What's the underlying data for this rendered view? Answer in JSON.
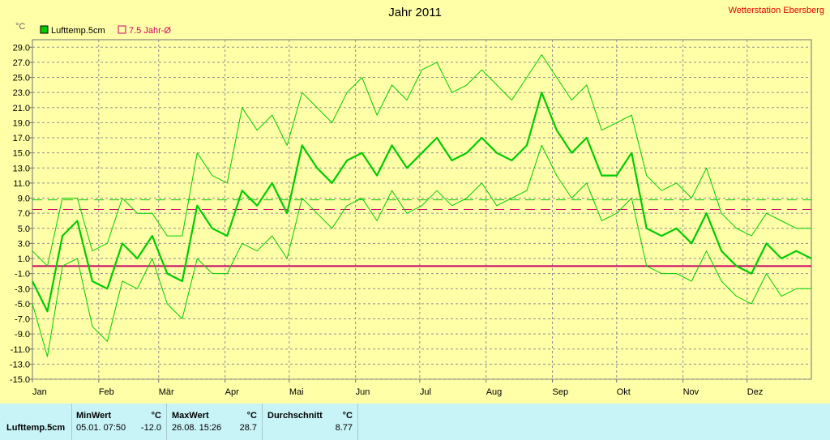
{
  "chart_data": {
    "type": "line",
    "title": "Jahr 2011",
    "station": "Wetterstation Ebersberg",
    "unit": "°C",
    "ylim": [
      -15,
      30
    ],
    "yticks": [
      29.0,
      27.0,
      25.0,
      23.0,
      21.0,
      19.0,
      17.0,
      15.0,
      13.0,
      11.0,
      9.0,
      7.0,
      5.0,
      3.0,
      1.0,
      -1.0,
      -3.0,
      -5.0,
      -7.0,
      -9.0,
      -11.0,
      -13.0,
      -15.0
    ],
    "ytick_labels": [
      "29.0",
      "27.0",
      "25.0",
      "23.0",
      "21.0",
      "19.0",
      "17.0",
      "15.0",
      "13.0",
      "11.0",
      "9.0",
      "7.0",
      "5.0",
      "3.0",
      "1.0",
      "-1.0",
      "-3.0",
      "-5.0",
      "-7.0",
      "-9.0",
      "-11.0",
      "-13.0",
      "-15.0"
    ],
    "months": [
      "Jan",
      "Feb",
      "Mär",
      "Apr",
      "Mai",
      "Jun",
      "Jul",
      "Aug",
      "Sep",
      "Okt",
      "Nov",
      "Dez"
    ],
    "grid": true,
    "legend_position": "top-left",
    "legend": [
      {
        "label": "Lufttemp.5cm",
        "color": "#00cc00"
      },
      {
        "label": "7.5 Jahr-Ø",
        "color": "#cc0066"
      }
    ],
    "reference_lines": [
      {
        "y": 0,
        "color": "#cc0066",
        "style": "solid"
      },
      {
        "y": 7.5,
        "color": "#cc0066",
        "style": "dashed"
      },
      {
        "y": 8.77,
        "color": "#00cc00",
        "style": "dashed"
      }
    ],
    "x_unit": "day of year 2011",
    "series": [
      {
        "name": "Lufttemp.5cm",
        "role": "daily mean",
        "color": "#00cc00",
        "x": [
          1,
          8,
          15,
          22,
          29,
          36,
          43,
          50,
          57,
          64,
          71,
          78,
          85,
          92,
          99,
          106,
          113,
          120,
          127,
          134,
          141,
          148,
          155,
          162,
          169,
          176,
          183,
          190,
          197,
          204,
          211,
          218,
          225,
          232,
          239,
          246,
          253,
          260,
          267,
          274,
          281,
          288,
          295,
          302,
          309,
          316,
          323,
          330,
          337,
          344,
          351,
          358,
          365
        ],
        "values": [
          -2,
          -6,
          4,
          6,
          -2,
          -3,
          3,
          1,
          4,
          -1,
          -2,
          8,
          5,
          4,
          10,
          8,
          11,
          7,
          16,
          13,
          11,
          14,
          15,
          12,
          16,
          13,
          15,
          17,
          14,
          15,
          17,
          15,
          14,
          16,
          23,
          18,
          15,
          17,
          12,
          12,
          15,
          5,
          4,
          5,
          3,
          7,
          2,
          0,
          -1,
          3,
          1,
          2,
          1
        ]
      },
      {
        "name": "Lufttemp.5cm",
        "role": "daily max",
        "color": "#00cc00",
        "x": [
          1,
          8,
          15,
          22,
          29,
          36,
          43,
          50,
          57,
          64,
          71,
          78,
          85,
          92,
          99,
          106,
          113,
          120,
          127,
          134,
          141,
          148,
          155,
          162,
          169,
          176,
          183,
          190,
          197,
          204,
          211,
          218,
          225,
          232,
          239,
          246,
          253,
          260,
          267,
          274,
          281,
          288,
          295,
          302,
          309,
          316,
          323,
          330,
          337,
          344,
          351,
          358,
          365
        ],
        "values": [
          2,
          0,
          9,
          9,
          2,
          3,
          9,
          7,
          7,
          4,
          4,
          15,
          12,
          11,
          21,
          18,
          20,
          16,
          23,
          21,
          19,
          23,
          25,
          20,
          24,
          22,
          26,
          27,
          23,
          24,
          26,
          24,
          22,
          25,
          28,
          25,
          22,
          24,
          18,
          19,
          20,
          12,
          10,
          11,
          9,
          13,
          7,
          5,
          4,
          7,
          6,
          5,
          5
        ]
      },
      {
        "name": "Lufttemp.5cm",
        "role": "daily min",
        "color": "#00cc00",
        "x": [
          1,
          8,
          15,
          22,
          29,
          36,
          43,
          50,
          57,
          64,
          71,
          78,
          85,
          92,
          99,
          106,
          113,
          120,
          127,
          134,
          141,
          148,
          155,
          162,
          169,
          176,
          183,
          190,
          197,
          204,
          211,
          218,
          225,
          232,
          239,
          246,
          253,
          260,
          267,
          274,
          281,
          288,
          295,
          302,
          309,
          316,
          323,
          330,
          337,
          344,
          351,
          358,
          365
        ],
        "values": [
          -5,
          -12,
          0,
          1,
          -8,
          -10,
          -2,
          -3,
          1,
          -5,
          -7,
          1,
          -1,
          -1,
          3,
          2,
          4,
          1,
          9,
          7,
          5,
          8,
          9,
          6,
          10,
          7,
          8,
          10,
          8,
          9,
          11,
          8,
          9,
          10,
          16,
          12,
          9,
          11,
          6,
          7,
          9,
          0,
          -1,
          -1,
          -2,
          2,
          -2,
          -4,
          -5,
          -1,
          -4,
          -3,
          -3
        ]
      }
    ]
  },
  "legend": {
    "series_label": "Lufttemp.5cm",
    "avg_label": "7.5 Jahr-Ø"
  },
  "table": {
    "header_min": "MinWert",
    "header_max": "MaxWert",
    "header_avg": "Durchschnitt",
    "unit": "°C",
    "row_label": "Lufttemp.5cm",
    "min_time": "05.01.  07:50",
    "min_value": "-12.0",
    "max_time": "26.08.  15:26",
    "max_value": "28.7",
    "avg_value": "8.77"
  }
}
